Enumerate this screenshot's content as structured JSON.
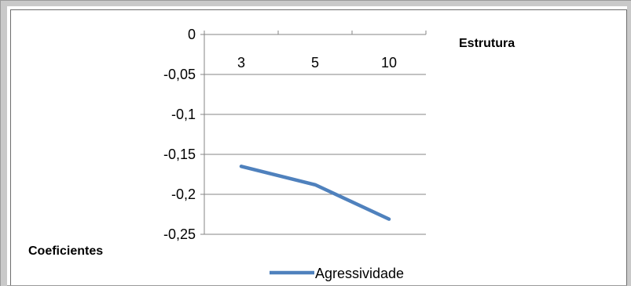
{
  "chart_data": {
    "type": "line",
    "title": "",
    "xlabel": "Estrutura",
    "ylabel": "Coeficientes",
    "categories": [
      "3",
      "5",
      "10"
    ],
    "series": [
      {
        "name": "Agressividade",
        "values": [
          -0.165,
          -0.188,
          -0.231
        ],
        "color": "#4f81bd"
      }
    ],
    "ylim": [
      -0.25,
      0
    ],
    "y_ticks": [
      {
        "value": 0,
        "label": "0"
      },
      {
        "value": -0.05,
        "label": "-0,05"
      },
      {
        "value": -0.1,
        "label": "-0,1"
      },
      {
        "value": -0.15,
        "label": "-0,15"
      },
      {
        "value": -0.2,
        "label": "-0,2"
      },
      {
        "value": -0.25,
        "label": "-0,25"
      }
    ],
    "x_axis_position": "top",
    "grid": true,
    "legend_position": "bottom",
    "colors": {
      "gridline": "#868686",
      "axis": "#868686",
      "series": "#4f81bd"
    }
  }
}
